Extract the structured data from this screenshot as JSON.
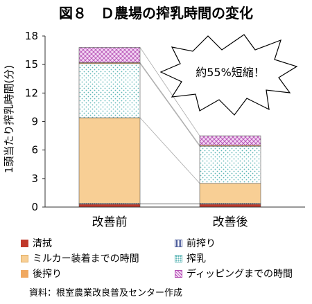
{
  "chart_data": {
    "type": "stacked-bar",
    "title": "図８　Ｄ農場の搾乳時間の変化",
    "xlabel": "",
    "ylabel": "1頭当たり搾乳時間(分)",
    "ylim": [
      0,
      18
    ],
    "yticks": [
      "0",
      "3",
      "6",
      "9",
      "12",
      "15",
      "18"
    ],
    "categories": [
      "改善前",
      "改善後"
    ],
    "series": [
      {
        "name": "清拭",
        "values": [
          0.3,
          0.3
        ],
        "color": "#c0392b",
        "pattern": "solid"
      },
      {
        "name": "前搾り",
        "values": [
          0.1,
          0.1
        ],
        "color": "#4a5a9a",
        "pattern": "vertical-lines"
      },
      {
        "name": "ミルカー装着までの時間",
        "values": [
          9.0,
          2.1
        ],
        "color": "#f8cf95",
        "pattern": "solid"
      },
      {
        "name": "搾乳",
        "values": [
          5.7,
          3.9
        ],
        "color": "#8ecfcf",
        "pattern": "dots"
      },
      {
        "name": "後搾り",
        "values": [
          0.1,
          0.1
        ],
        "color": "#f0a860",
        "pattern": "solid"
      },
      {
        "name": "ディッピングまでの時間",
        "values": [
          1.6,
          1.0
        ],
        "color": "#c86fc8",
        "pattern": "crosshatch"
      }
    ],
    "annotation": "約55%短縮！",
    "grid": false,
    "legend_position": "bottom"
  },
  "source_note": "資料：根室農業改良普及センター作成"
}
